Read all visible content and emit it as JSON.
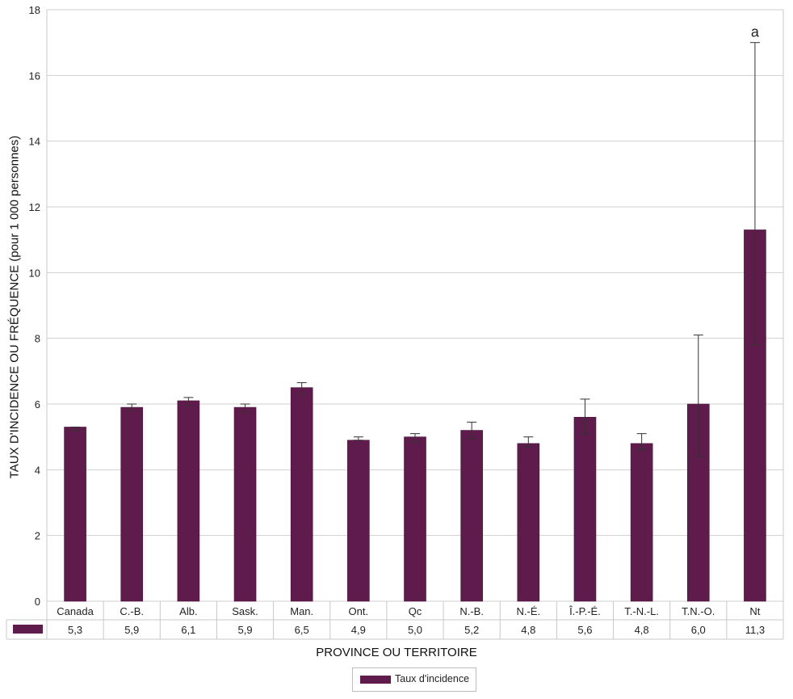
{
  "chart_data": {
    "type": "bar",
    "title": "",
    "xlabel": "PROVINCE OU TERRITOIRE",
    "ylabel": "TAUX D'INCIDENCE OU FRÉQUENCE (pour 1 000 personnes)",
    "ylim": [
      0,
      18
    ],
    "yticks": [
      0,
      2,
      4,
      6,
      8,
      10,
      12,
      14,
      16,
      18
    ],
    "grid": true,
    "legend_position": "bottom-center",
    "categories": [
      "Canada",
      "C.-B.",
      "Alb.",
      "Sask.",
      "Man.",
      "Ont.",
      "Qc",
      "N.-B.",
      "N.-É.",
      "Î.-P.-É.",
      "T.-N.-L.",
      "T.N.-O.",
      "Nt"
    ],
    "series": [
      {
        "name": "Taux d'incidence",
        "color": "#5e1b4b",
        "values": [
          5.3,
          5.9,
          6.1,
          5.9,
          6.5,
          4.9,
          5.0,
          5.2,
          4.8,
          5.6,
          4.8,
          6.0,
          11.3
        ],
        "labels": [
          "5,3",
          "5,9",
          "6,1",
          "5,9",
          "6,5",
          "4,9",
          "5,0",
          "5,2",
          "4,8",
          "5,6",
          "4,8",
          "6,0",
          "11,3"
        ],
        "error_low": [
          5.2,
          5.8,
          5.95,
          5.75,
          6.3,
          4.9,
          4.85,
          4.95,
          4.7,
          5.1,
          4.6,
          4.4,
          7.8
        ],
        "error_high": [
          5.3,
          6.0,
          6.2,
          6.0,
          6.65,
          5.0,
          5.1,
          5.45,
          5.0,
          6.15,
          5.1,
          8.1,
          17.0
        ]
      }
    ],
    "annotations": [
      {
        "category": "Nt",
        "text": "a"
      }
    ]
  }
}
